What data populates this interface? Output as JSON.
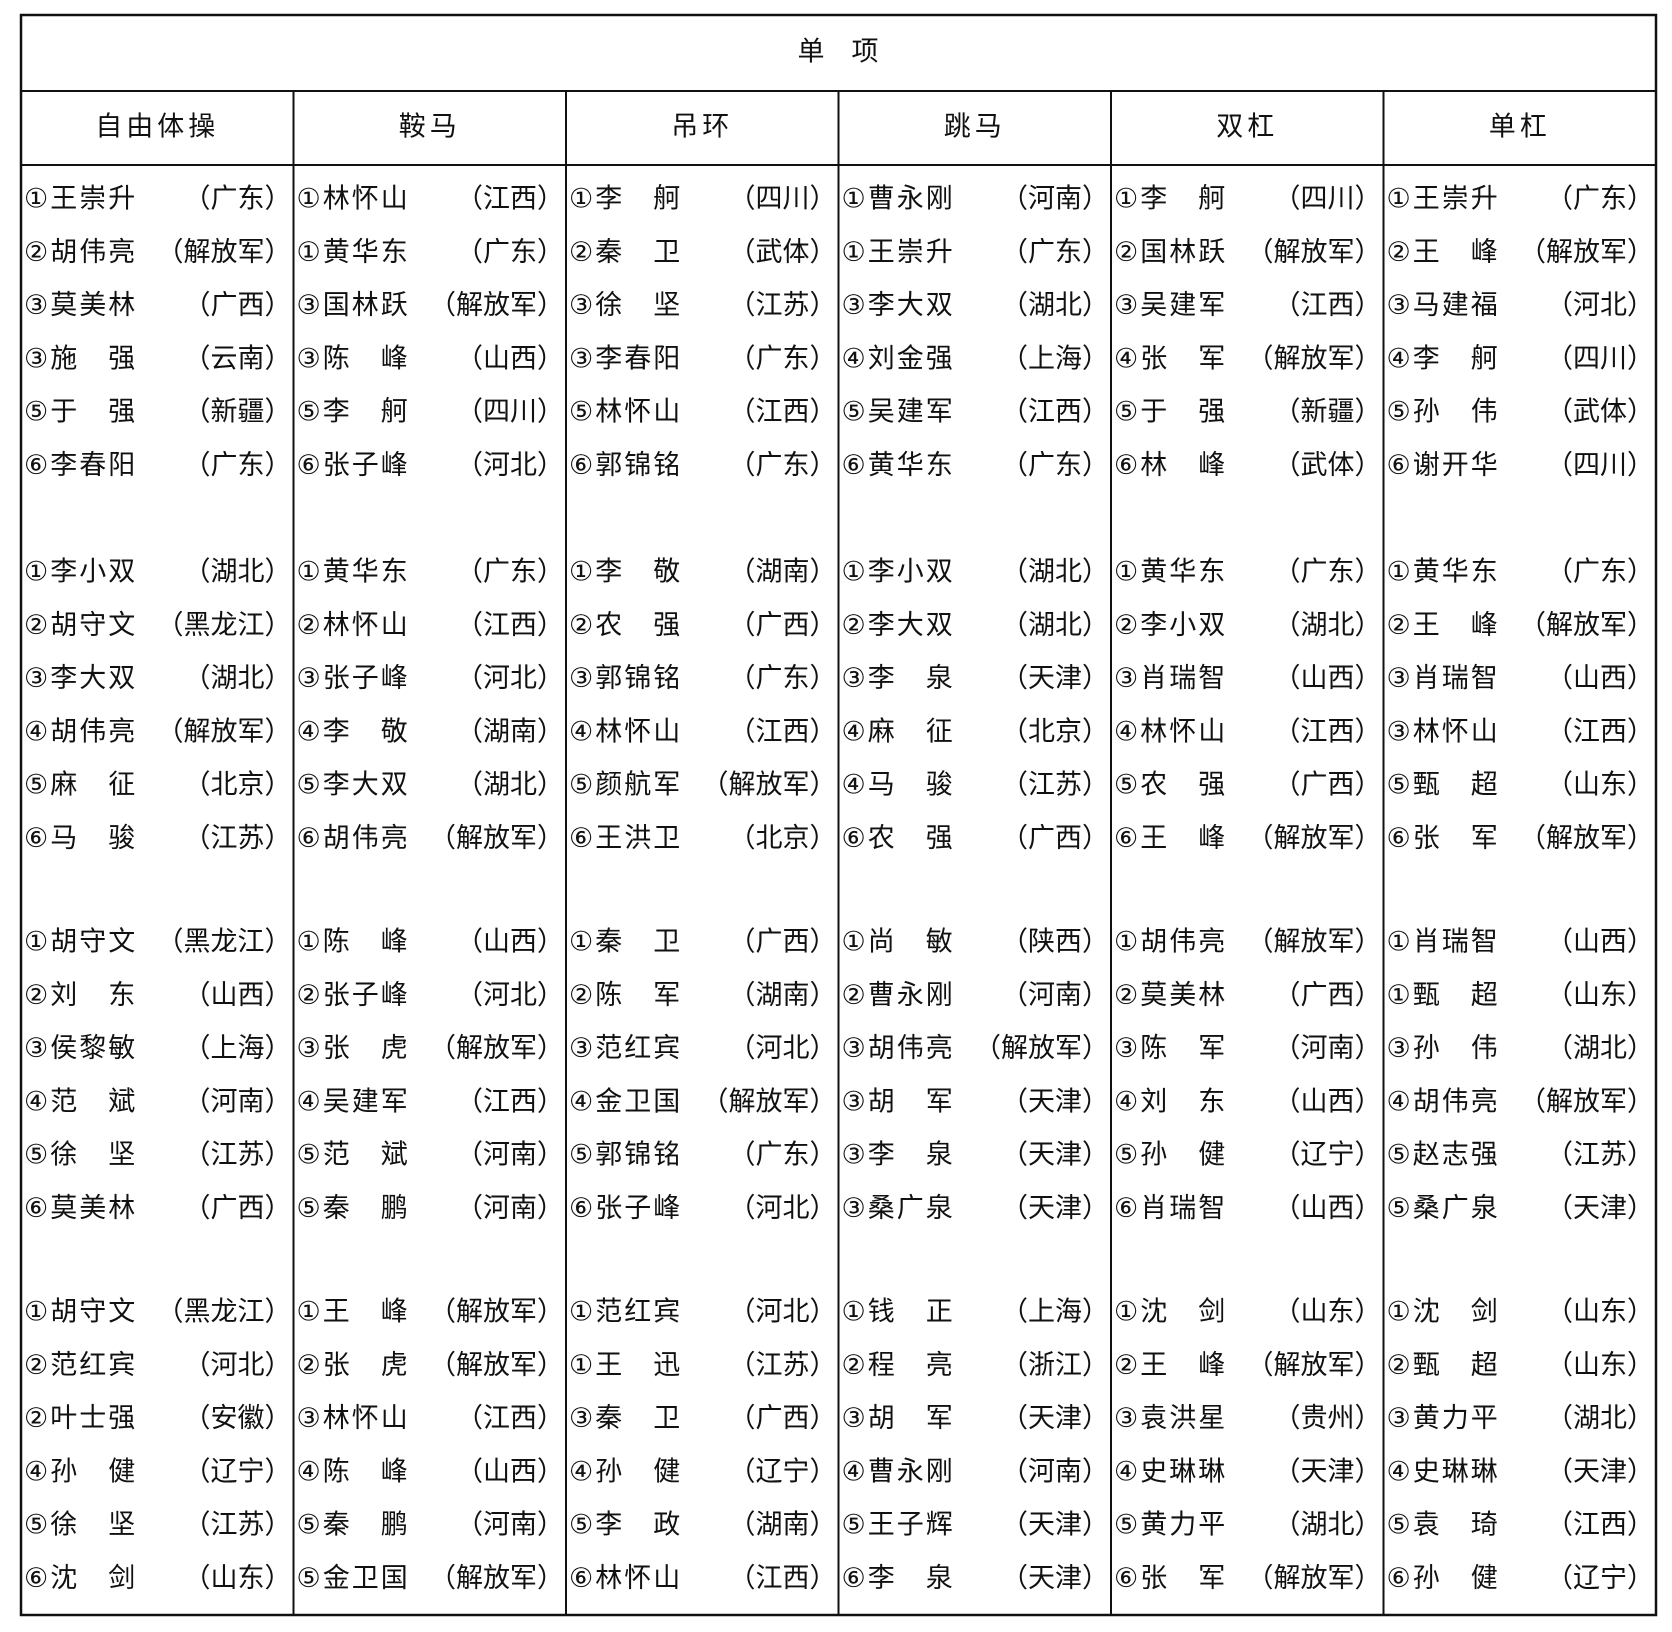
{
  "table": {
    "title": "单　项",
    "columns": [
      "自由体操",
      "鞍马",
      "吊环",
      "跳马",
      "双杠",
      "单杠"
    ],
    "groups": [
      [
        [
          [
            "①王崇升",
            "（广东）"
          ],
          [
            "①林怀山",
            "（江西）"
          ],
          [
            "①李　舸",
            "（四川）"
          ],
          [
            "①曹永刚",
            "（河南）"
          ],
          [
            "①李　舸",
            "（四川）"
          ],
          [
            "①王崇升",
            "（广东）"
          ]
        ],
        [
          [
            "②胡伟亮",
            "（解放军）"
          ],
          [
            "①黄华东",
            "（广东）"
          ],
          [
            "②秦　卫",
            "（武体）"
          ],
          [
            "①王崇升",
            "（广东）"
          ],
          [
            "②国林跃",
            "（解放军）"
          ],
          [
            "②王　峰",
            "（解放军）"
          ]
        ],
        [
          [
            "③莫美林",
            "（广西）"
          ],
          [
            "③国林跃",
            "（解放军）"
          ],
          [
            "③徐　坚",
            "（江苏）"
          ],
          [
            "③李大双",
            "（湖北）"
          ],
          [
            "③吴建军",
            "（江西）"
          ],
          [
            "③马建福",
            "（河北）"
          ]
        ],
        [
          [
            "③施　强",
            "（云南）"
          ],
          [
            "③陈　峰",
            "（山西）"
          ],
          [
            "③李春阳",
            "（广东）"
          ],
          [
            "④刘金强",
            "（上海）"
          ],
          [
            "④张　军",
            "（解放军）"
          ],
          [
            "④李　舸",
            "（四川）"
          ]
        ],
        [
          [
            "⑤于　强",
            "（新疆）"
          ],
          [
            "⑤李　舸",
            "（四川）"
          ],
          [
            "⑤林怀山",
            "（江西）"
          ],
          [
            "⑤吴建军",
            "（江西）"
          ],
          [
            "⑤于　强",
            "（新疆）"
          ],
          [
            "⑤孙　伟",
            "（武体）"
          ]
        ],
        [
          [
            "⑥李春阳",
            "（广东）"
          ],
          [
            "⑥张子峰",
            "（河北）"
          ],
          [
            "⑥郭锦铭",
            "（广东）"
          ],
          [
            "⑥黄华东",
            "（广东）"
          ],
          [
            "⑥林　峰",
            "（武体）"
          ],
          [
            "⑥谢开华",
            "（四川）"
          ]
        ]
      ],
      [
        [
          [
            "①李小双",
            "（湖北）"
          ],
          [
            "①黄华东",
            "（广东）"
          ],
          [
            "①李　敬",
            "（湖南）"
          ],
          [
            "①李小双",
            "（湖北）"
          ],
          [
            "①黄华东",
            "（广东）"
          ],
          [
            "①黄华东",
            "（广东）"
          ]
        ],
        [
          [
            "②胡守文",
            "（黑龙江）"
          ],
          [
            "②林怀山",
            "（江西）"
          ],
          [
            "②农　强",
            "（广西）"
          ],
          [
            "②李大双",
            "（湖北）"
          ],
          [
            "②李小双",
            "（湖北）"
          ],
          [
            "②王　峰",
            "（解放军）"
          ]
        ],
        [
          [
            "③李大双",
            "（湖北）"
          ],
          [
            "③张子峰",
            "（河北）"
          ],
          [
            "③郭锦铭",
            "（广东）"
          ],
          [
            "③李　泉",
            "（天津）"
          ],
          [
            "③肖瑞智",
            "（山西）"
          ],
          [
            "③肖瑞智",
            "（山西）"
          ]
        ],
        [
          [
            "④胡伟亮",
            "（解放军）"
          ],
          [
            "④李　敬",
            "（湖南）"
          ],
          [
            "④林怀山",
            "（江西）"
          ],
          [
            "④麻　征",
            "（北京）"
          ],
          [
            "④林怀山",
            "（江西）"
          ],
          [
            "③林怀山",
            "（江西）"
          ]
        ],
        [
          [
            "⑤麻　征",
            "（北京）"
          ],
          [
            "⑤李大双",
            "（湖北）"
          ],
          [
            "⑤颜航军",
            "（解放军）"
          ],
          [
            "④马　骏",
            "（江苏）"
          ],
          [
            "⑤农　强",
            "（广西）"
          ],
          [
            "⑤甄　超",
            "（山东）"
          ]
        ],
        [
          [
            "⑥马　骏",
            "（江苏）"
          ],
          [
            "⑥胡伟亮",
            "（解放军）"
          ],
          [
            "⑥王洪卫",
            "（北京）"
          ],
          [
            "⑥农　强",
            "（广西）"
          ],
          [
            "⑥王　峰",
            "（解放军）"
          ],
          [
            "⑥张　军",
            "（解放军）"
          ]
        ]
      ],
      [
        [
          [
            "①胡守文",
            "（黑龙江）"
          ],
          [
            "①陈　峰",
            "（山西）"
          ],
          [
            "①秦　卫",
            "（广西）"
          ],
          [
            "①尚　敏",
            "（陕西）"
          ],
          [
            "①胡伟亮",
            "（解放军）"
          ],
          [
            "①肖瑞智",
            "（山西）"
          ]
        ],
        [
          [
            "②刘　东",
            "（山西）"
          ],
          [
            "②张子峰",
            "（河北）"
          ],
          [
            "②陈　军",
            "（湖南）"
          ],
          [
            "②曹永刚",
            "（河南）"
          ],
          [
            "②莫美林",
            "（广西）"
          ],
          [
            "①甄　超",
            "（山东）"
          ]
        ],
        [
          [
            "③侯黎敏",
            "（上海）"
          ],
          [
            "③张　虎",
            "（解放军）"
          ],
          [
            "③范红宾",
            "（河北）"
          ],
          [
            "③胡伟亮",
            "（解放军）"
          ],
          [
            "③陈　军",
            "（河南）"
          ],
          [
            "③孙　伟",
            "（湖北）"
          ]
        ],
        [
          [
            "④范　斌",
            "（河南）"
          ],
          [
            "④吴建军",
            "（江西）"
          ],
          [
            "④金卫国",
            "（解放军）"
          ],
          [
            "③胡　军",
            "（天津）"
          ],
          [
            "④刘　东",
            "（山西）"
          ],
          [
            "④胡伟亮",
            "（解放军）"
          ]
        ],
        [
          [
            "⑤徐　坚",
            "（江苏）"
          ],
          [
            "⑤范　斌",
            "（河南）"
          ],
          [
            "⑤郭锦铭",
            "（广东）"
          ],
          [
            "③李　泉",
            "（天津）"
          ],
          [
            "⑤孙　健",
            "（辽宁）"
          ],
          [
            "⑤赵志强",
            "（江苏）"
          ]
        ],
        [
          [
            "⑥莫美林",
            "（广西）"
          ],
          [
            "⑤秦　鹏",
            "（河南）"
          ],
          [
            "⑥张子峰",
            "（河北）"
          ],
          [
            "③桑广泉",
            "（天津）"
          ],
          [
            "⑥肖瑞智",
            "（山西）"
          ],
          [
            "⑤桑广泉",
            "（天津）"
          ]
        ]
      ],
      [
        [
          [
            "①胡守文",
            "（黑龙江）"
          ],
          [
            "①王　峰",
            "（解放军）"
          ],
          [
            "①范红宾",
            "（河北）"
          ],
          [
            "①钱　正",
            "（上海）"
          ],
          [
            "①沈　剑",
            "（山东）"
          ],
          [
            "①沈　剑",
            "（山东）"
          ]
        ],
        [
          [
            "②范红宾",
            "（河北）"
          ],
          [
            "②张　虎",
            "（解放军）"
          ],
          [
            "①王　迅",
            "（江苏）"
          ],
          [
            "②程　亮",
            "（浙江）"
          ],
          [
            "②王　峰",
            "（解放军）"
          ],
          [
            "②甄　超",
            "（山东）"
          ]
        ],
        [
          [
            "②叶士强",
            "（安徽）"
          ],
          [
            "③林怀山",
            "（江西）"
          ],
          [
            "③秦　卫",
            "（广西）"
          ],
          [
            "③胡　军",
            "（天津）"
          ],
          [
            "③袁洪星",
            "（贵州）"
          ],
          [
            "③黄力平",
            "（湖北）"
          ]
        ],
        [
          [
            "④孙　健",
            "（辽宁）"
          ],
          [
            "④陈　峰",
            "（山西）"
          ],
          [
            "④孙　健",
            "（辽宁）"
          ],
          [
            "④曹永刚",
            "（河南）"
          ],
          [
            "④史琳琳",
            "（天津）"
          ],
          [
            "④史琳琳",
            "（天津）"
          ]
        ],
        [
          [
            "⑤徐　坚",
            "（江苏）"
          ],
          [
            "⑤秦　鹏",
            "（河南）"
          ],
          [
            "⑤李　政",
            "（湖南）"
          ],
          [
            "⑤王子辉",
            "（天津）"
          ],
          [
            "⑤黄力平",
            "（湖北）"
          ],
          [
            "⑤袁　琦",
            "（江西）"
          ]
        ],
        [
          [
            "⑥沈　剑",
            "（山东）"
          ],
          [
            "⑤金卫国",
            "（解放军）"
          ],
          [
            "⑥林怀山",
            "（江西）"
          ],
          [
            "⑥李　泉",
            "（天津）"
          ],
          [
            "⑥张　军",
            "（解放军）"
          ],
          [
            "⑥孙　健",
            "（辽宁）"
          ]
        ]
      ]
    ]
  }
}
